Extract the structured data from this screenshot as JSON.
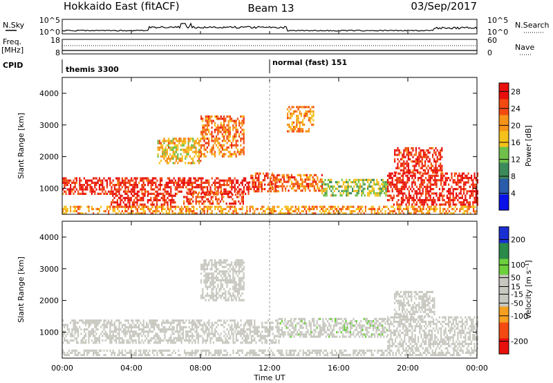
{
  "header": {
    "station": "Hokkaido East (fitACF)",
    "beam": "Beam 13",
    "date": "03/Sep/2017"
  },
  "strip_panels": {
    "nsky": {
      "label": "N.Sky",
      "right_label": "N.Search",
      "left_ticks": [
        "10^5",
        "10^0"
      ],
      "right_ticks": [
        "10^5",
        "10^0"
      ]
    },
    "freq": {
      "label": "Freq.",
      "unit": "[MHz]",
      "right_label": "Nave",
      "left_ticks": [
        "18",
        "8"
      ],
      "right_ticks": [
        "60",
        "0"
      ]
    },
    "cpid": {
      "label": "CPID",
      "modes": [
        {
          "name": "themis 3300",
          "start_hour": 0
        },
        {
          "name": "normal (fast) 151",
          "start_hour": 12
        }
      ]
    }
  },
  "chart_data": [
    {
      "type": "heatmap",
      "name": "power",
      "ylabel": "Slant Range [km]",
      "xlabel": "Time UT",
      "x_ticks": [
        "00:00",
        "04:00",
        "08:00",
        "12:00",
        "16:00",
        "20:00",
        "00:00"
      ],
      "x_range_hours": [
        0,
        24
      ],
      "y_ticks": [
        1000,
        2000,
        3000,
        4000
      ],
      "y_range_km": [
        180,
        4500
      ],
      "colorbar": {
        "label": "Power [dB]",
        "ticks": [
          4,
          8,
          12,
          16,
          20,
          24,
          28
        ],
        "range": [
          0,
          30
        ]
      },
      "echo_regions": [
        {
          "t0": 0.0,
          "t1": 10.8,
          "r0": 850,
          "r1": 1350,
          "value": 27
        },
        {
          "t0": 2.8,
          "t1": 6.5,
          "r0": 400,
          "r1": 800,
          "value": 28
        },
        {
          "t0": 7.0,
          "t1": 10.5,
          "r0": 500,
          "r1": 900,
          "value": 25
        },
        {
          "t0": 10.8,
          "t1": 12.5,
          "r0": 900,
          "r1": 1500,
          "value": 26
        },
        {
          "t0": 12.0,
          "t1": 15.0,
          "r0": 950,
          "r1": 1450,
          "value": 23
        },
        {
          "t0": 15.0,
          "t1": 18.8,
          "r0": 800,
          "r1": 1300,
          "value": 14
        },
        {
          "t0": 18.8,
          "t1": 24.0,
          "r0": 500,
          "r1": 1500,
          "value": 28
        },
        {
          "t0": 19.2,
          "t1": 22.0,
          "r0": 1500,
          "r1": 2300,
          "value": 27
        },
        {
          "t0": 8.0,
          "t1": 10.5,
          "r0": 2000,
          "r1": 3300,
          "value": 22
        },
        {
          "t0": 5.5,
          "t1": 8.0,
          "r0": 1800,
          "r1": 2600,
          "value": 18
        },
        {
          "t0": 13.0,
          "t1": 14.5,
          "r0": 2800,
          "r1": 3600,
          "value": 20
        },
        {
          "t0": 0.0,
          "t1": 24.0,
          "r0": 200,
          "r1": 450,
          "value": 20
        }
      ]
    },
    {
      "type": "heatmap",
      "name": "velocity",
      "ylabel": "Slant Range [km]",
      "xlabel": "Time UT",
      "x_ticks": [
        "00:00",
        "04:00",
        "08:00",
        "12:00",
        "16:00",
        "20:00",
        "00:00"
      ],
      "x_range_hours": [
        0,
        24
      ],
      "y_ticks": [
        1000,
        2000,
        3000,
        4000
      ],
      "y_range_km": [
        180,
        4500
      ],
      "colorbar": {
        "label": "Velocity [m s⁻¹]",
        "ticks": [
          -200,
          -100,
          -50,
          -15,
          15,
          50,
          100,
          200
        ],
        "range": [
          -250,
          250
        ]
      },
      "echo_regions": [
        {
          "t0": 0.0,
          "t1": 12.5,
          "r0": 700,
          "r1": 1400,
          "value": 0
        },
        {
          "t0": 12.5,
          "t1": 18.8,
          "r0": 850,
          "r1": 1450,
          "value": 40
        },
        {
          "t0": 18.8,
          "t1": 24.0,
          "r0": 500,
          "r1": 1500,
          "value": 0
        },
        {
          "t0": 19.2,
          "t1": 21.5,
          "r0": 1500,
          "r1": 2300,
          "value": 0
        },
        {
          "t0": 8.0,
          "t1": 10.5,
          "r0": 2000,
          "r1": 3300,
          "value": 0
        },
        {
          "t0": 0.0,
          "t1": 24.0,
          "r0": 250,
          "r1": 450,
          "value": -30
        }
      ]
    }
  ],
  "colors": {
    "power_scale": [
      "#0a12e8",
      "#2a5caa",
      "#3c8a5a",
      "#6fc04a",
      "#f4c21a",
      "#f79318",
      "#f24a10",
      "#e8100c"
    ],
    "velocity_scale": [
      "#e8100c",
      "#f24a10",
      "#f6a020",
      "#c8c8c0",
      "#c8c8c0",
      "#6ccf3c",
      "#2a8a4a",
      "#1a2fd2"
    ]
  }
}
